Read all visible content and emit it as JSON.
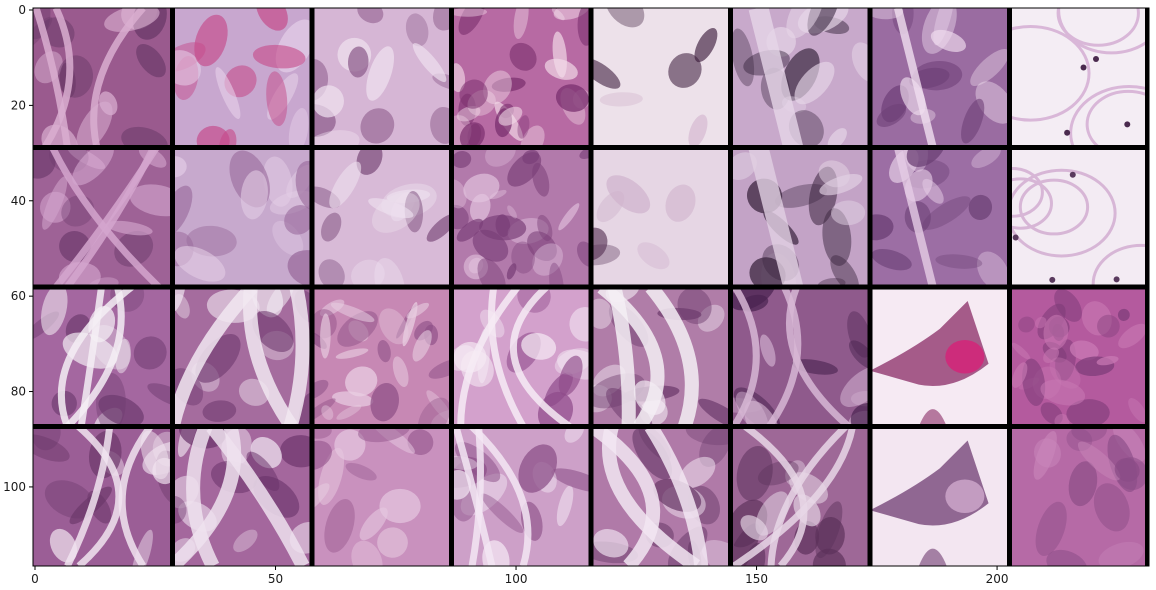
{
  "figure": {
    "type": "image-grid",
    "rows": 4,
    "cols": 8,
    "image_width_units": 232,
    "image_height_units": 117,
    "tile_size_units": 28,
    "separator_color": "#000000",
    "background": "#ffffff"
  },
  "axes": {
    "x_ticks": [
      {
        "value": 0,
        "label": "0"
      },
      {
        "value": 50,
        "label": "50"
      },
      {
        "value": 100,
        "label": "100"
      },
      {
        "value": 150,
        "label": "150"
      },
      {
        "value": 200,
        "label": "200"
      }
    ],
    "y_ticks": [
      {
        "value": 0,
        "label": "0"
      },
      {
        "value": 20,
        "label": "20"
      },
      {
        "value": 40,
        "label": "40"
      },
      {
        "value": 60,
        "label": "60"
      },
      {
        "value": 80,
        "label": "80"
      },
      {
        "value": 100,
        "label": "100"
      }
    ]
  },
  "tiles": [
    [
      {
        "name": "tile-r1-c1",
        "bg": "#9a5a8e",
        "accent": "#d9aed0",
        "dark": "#6a3a68",
        "pattern": "glands"
      },
      {
        "name": "tile-r1-c2",
        "bg": "#c8a7cf",
        "accent": "#e8d3ea",
        "dark": "#c54a8a",
        "pattern": "fibrous"
      },
      {
        "name": "tile-r1-c3",
        "bg": "#d6b6d5",
        "accent": "#efe1ef",
        "dark": "#8c5a8a",
        "pattern": "smooth"
      },
      {
        "name": "tile-r1-c4",
        "bg": "#b76aa3",
        "accent": "#f3dbe9",
        "dark": "#7a2f6e",
        "pattern": "dense"
      },
      {
        "name": "tile-r1-c5",
        "bg": "#ede1ea",
        "accent": "#d6bcd2",
        "dark": "#3a1a3a",
        "pattern": "sparse"
      },
      {
        "name": "tile-r1-c6",
        "bg": "#c8a9cb",
        "accent": "#e6d6e8",
        "dark": "#34223a",
        "pattern": "bands"
      },
      {
        "name": "tile-r1-c7",
        "bg": "#9a6ca1",
        "accent": "#f1dff0",
        "dark": "#6e3f77",
        "pattern": "streak"
      },
      {
        "name": "tile-r1-c8",
        "bg": "#f4edf4",
        "accent": "#d9b7d8",
        "dark": "#4a2a4e",
        "pattern": "fat"
      }
    ],
    [
      {
        "name": "tile-r2-c1",
        "bg": "#9e6296",
        "accent": "#d4a6ce",
        "dark": "#6c3a6c",
        "pattern": "glands"
      },
      {
        "name": "tile-r2-c2",
        "bg": "#c7a9cd",
        "accent": "#e3cde5",
        "dark": "#9a6a9c",
        "pattern": "smooth"
      },
      {
        "name": "tile-r2-c3",
        "bg": "#d8bad7",
        "accent": "#eddfee",
        "dark": "#7a4a7a",
        "pattern": "smooth"
      },
      {
        "name": "tile-r2-c4",
        "bg": "#b27aab",
        "accent": "#e3c4df",
        "dark": "#7a3f78",
        "pattern": "dense"
      },
      {
        "name": "tile-r2-c5",
        "bg": "#e6d6e4",
        "accent": "#cfb2cc",
        "dark": "#5a3658",
        "pattern": "sparse"
      },
      {
        "name": "tile-r2-c6",
        "bg": "#c3a3c6",
        "accent": "#e2d1e3",
        "dark": "#3a243e",
        "pattern": "bands"
      },
      {
        "name": "tile-r2-c7",
        "bg": "#9c6ea4",
        "accent": "#e6cde6",
        "dark": "#6b3f74",
        "pattern": "streak"
      },
      {
        "name": "tile-r2-c8",
        "bg": "#f3ebf3",
        "accent": "#d7b6d6",
        "dark": "#5a3a5e",
        "pattern": "fat"
      }
    ],
    [
      {
        "name": "tile-r3-c1",
        "bg": "#a467a0",
        "accent": "#f4eef4",
        "dark": "#6e3b6f",
        "pattern": "glands"
      },
      {
        "name": "tile-r3-c2",
        "bg": "#a56c9e",
        "accent": "#f1e8f1",
        "dark": "#6f3a6f",
        "pattern": "blob"
      },
      {
        "name": "tile-r3-c3",
        "bg": "#c788b4",
        "accent": "#e9cfe2",
        "dark": "#8d4f86",
        "pattern": "dense"
      },
      {
        "name": "tile-r3-c4",
        "bg": "#d3a1cc",
        "accent": "#f6ebf5",
        "dark": "#8f4b8b",
        "pattern": "glands"
      },
      {
        "name": "tile-r3-c5",
        "bg": "#b07da8",
        "accent": "#f5eef5",
        "dark": "#6d3c6d",
        "pattern": "blob"
      },
      {
        "name": "tile-r3-c6",
        "bg": "#8f5a8c",
        "accent": "#d7b7d5",
        "dark": "#4a2350",
        "pattern": "glands"
      },
      {
        "name": "tile-r3-c7",
        "bg": "#f6eaf3",
        "accent": "#d1277a",
        "dark": "#8a2b66",
        "pattern": "bleed"
      },
      {
        "name": "tile-r3-c8",
        "bg": "#b45a9e",
        "accent": "#c97ab4",
        "dark": "#7d3b78",
        "pattern": "dense"
      }
    ],
    [
      {
        "name": "tile-r4-c1",
        "bg": "#9b5e96",
        "accent": "#f1e4f0",
        "dark": "#6a3769",
        "pattern": "glands"
      },
      {
        "name": "tile-r4-c2",
        "bg": "#a4679d",
        "accent": "#efe2ef",
        "dark": "#6b346b",
        "pattern": "blob"
      },
      {
        "name": "tile-r4-c3",
        "bg": "#c991be",
        "accent": "#e6c8df",
        "dark": "#94558c",
        "pattern": "smooth"
      },
      {
        "name": "tile-r4-c4",
        "bg": "#cda0c8",
        "accent": "#f3e6f3",
        "dark": "#8a4d86",
        "pattern": "glands"
      },
      {
        "name": "tile-r4-c5",
        "bg": "#b07aa8",
        "accent": "#f2e6f2",
        "dark": "#6c3d6b",
        "pattern": "blob"
      },
      {
        "name": "tile-r4-c6",
        "bg": "#9e6897",
        "accent": "#e7d7e6",
        "dark": "#5b305a",
        "pattern": "glands"
      },
      {
        "name": "tile-r4-c7",
        "bg": "#f3e6f1",
        "accent": "#c9a2c6",
        "dark": "#6f3c71",
        "pattern": "bleed"
      },
      {
        "name": "tile-r4-c8",
        "bg": "#b66aa6",
        "accent": "#c987bb",
        "dark": "#8a4c86",
        "pattern": "smooth"
      }
    ]
  ]
}
